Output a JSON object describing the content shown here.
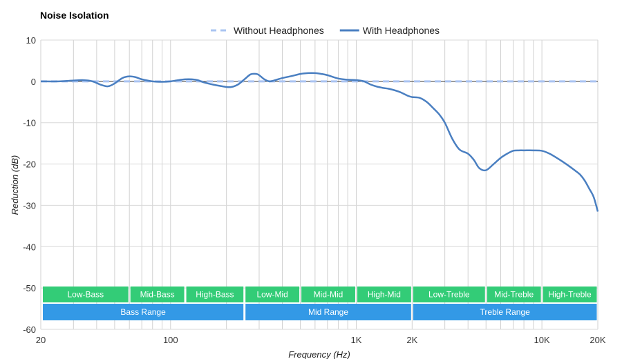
{
  "chart_data": {
    "type": "line",
    "title": "Noise Isolation",
    "xlabel": "Frequency (Hz)",
    "ylabel": "Reduction (dB)",
    "x_scale": "log",
    "xlim": [
      20,
      20000
    ],
    "ylim": [
      -60,
      10
    ],
    "grid": true,
    "legend_position": "top-center",
    "x_ticks": [
      {
        "value": 20,
        "label": "20"
      },
      {
        "value": 100,
        "label": "100"
      },
      {
        "value": 1000,
        "label": "1K"
      },
      {
        "value": 2000,
        "label": "2K"
      },
      {
        "value": 10000,
        "label": "10K"
      },
      {
        "value": 20000,
        "label": "20K"
      }
    ],
    "y_ticks": [
      10,
      0,
      -10,
      -20,
      -30,
      -40,
      -50,
      -60
    ],
    "series": [
      {
        "name": "Without Headphones",
        "color": "#aac4f2",
        "style": "dashed",
        "x": [
          20,
          20000
        ],
        "y": [
          0,
          0
        ]
      },
      {
        "name": "With Headphones",
        "color": "#4a7fc1",
        "style": "solid",
        "x": [
          20,
          25,
          30,
          34,
          38,
          42,
          46,
          50,
          55,
          60,
          65,
          70,
          80,
          90,
          100,
          110,
          120,
          130,
          140,
          150,
          170,
          190,
          210,
          230,
          250,
          270,
          290,
          300,
          320,
          340,
          360,
          400,
          450,
          500,
          550,
          600,
          650,
          700,
          800,
          900,
          1000,
          1100,
          1200,
          1300,
          1400,
          1500,
          1700,
          1900,
          2000,
          2200,
          2400,
          2600,
          2800,
          3000,
          3300,
          3600,
          4000,
          4300,
          4600,
          5000,
          5500,
          6000,
          6500,
          7000,
          7500,
          8000,
          9000,
          10000,
          11000,
          12000,
          13000,
          14000,
          15000,
          16000,
          17000,
          18000,
          19000,
          20000
        ],
        "y": [
          0,
          0,
          0.2,
          0.3,
          0,
          -0.8,
          -1.2,
          -0.5,
          0.8,
          1.2,
          1,
          0.5,
          0,
          -0.1,
          0,
          0.3,
          0.5,
          0.5,
          0.3,
          -0.2,
          -0.8,
          -1.2,
          -1.4,
          -0.8,
          0.5,
          1.7,
          1.8,
          1.5,
          0.5,
          0,
          0.2,
          0.8,
          1.3,
          1.8,
          2,
          2,
          1.8,
          1.5,
          0.7,
          0.4,
          0.3,
          0,
          -0.8,
          -1.3,
          -1.6,
          -1.8,
          -2.5,
          -3.5,
          -3.8,
          -4,
          -5,
          -6.5,
          -8,
          -10,
          -14,
          -16.5,
          -17.5,
          -19,
          -21,
          -21.5,
          -20,
          -18.5,
          -17.5,
          -16.8,
          -16.7,
          -16.7,
          -16.7,
          -16.8,
          -17.5,
          -18.5,
          -19.5,
          -20.5,
          -21.5,
          -22.5,
          -24,
          -26,
          -28,
          -31.5
        ]
      }
    ],
    "annotations": {
      "bands": [
        {
          "label": "Low-Bass",
          "from": 20,
          "to": 60
        },
        {
          "label": "Mid-Bass",
          "from": 60,
          "to": 120
        },
        {
          "label": "High-Bass",
          "from": 120,
          "to": 250
        },
        {
          "label": "Low-Mid",
          "from": 250,
          "to": 500
        },
        {
          "label": "Mid-Mid",
          "from": 500,
          "to": 1000
        },
        {
          "label": "High-Mid",
          "from": 1000,
          "to": 2000
        },
        {
          "label": "Low-Treble",
          "from": 2000,
          "to": 5000
        },
        {
          "label": "Mid-Treble",
          "from": 5000,
          "to": 10000
        },
        {
          "label": "High-Treble",
          "from": 10000,
          "to": 20000
        }
      ],
      "ranges": [
        {
          "label": "Bass Range",
          "from": 20,
          "to": 250
        },
        {
          "label": "Mid Range",
          "from": 250,
          "to": 2000
        },
        {
          "label": "Treble Range",
          "from": 2000,
          "to": 20000
        }
      ],
      "band_color": "#33cc77",
      "range_color": "#3399e6"
    }
  }
}
